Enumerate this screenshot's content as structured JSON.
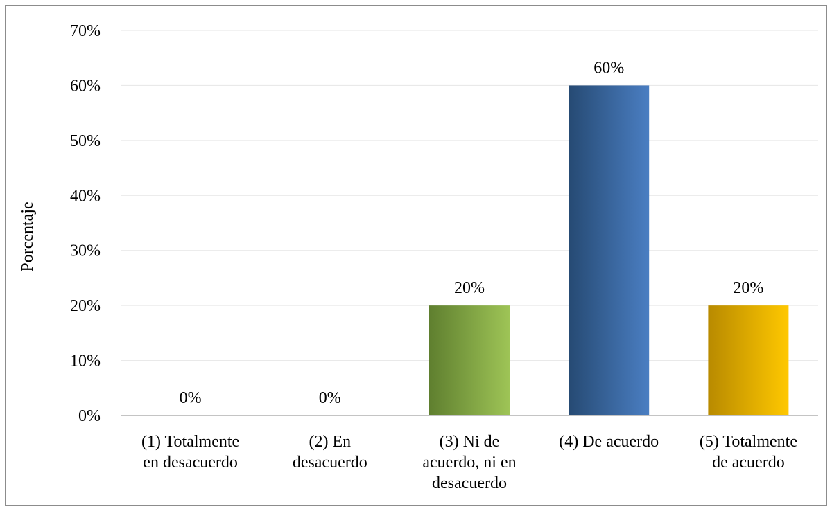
{
  "chart_data": {
    "type": "bar",
    "title": "",
    "xlabel": "",
    "ylabel": "Porcentaje",
    "ylim": [
      0,
      70
    ],
    "yticks": [
      0,
      10,
      20,
      30,
      40,
      50,
      60,
      70
    ],
    "ytick_suffix": "%",
    "grid": true,
    "legend": "none",
    "categories": [
      [
        "(1) Totalmente",
        "en desacuerdo"
      ],
      [
        "(2) En",
        "desacuerdo"
      ],
      [
        "(3) Ni de",
        "acuerdo, ni en",
        "desacuerdo"
      ],
      [
        "(4) De acuerdo"
      ],
      [
        "(5) Totalmente",
        "de acuerdo"
      ]
    ],
    "values": [
      0,
      0,
      20,
      60,
      20
    ],
    "data_labels": [
      "0%",
      "0%",
      "20%",
      "60%",
      "20%"
    ],
    "bar_colors": [
      [
        "#5a7a2e",
        "#9bc152"
      ],
      [
        "#5a7a2e",
        "#9bc152"
      ],
      [
        "#5f7f2f",
        "#9ec456"
      ],
      [
        "#264a73",
        "#4a7ec2"
      ],
      [
        "#b88a00",
        "#ffc800"
      ]
    ],
    "gridline_color": "#e6e6e6",
    "axis_color": "#888888"
  }
}
